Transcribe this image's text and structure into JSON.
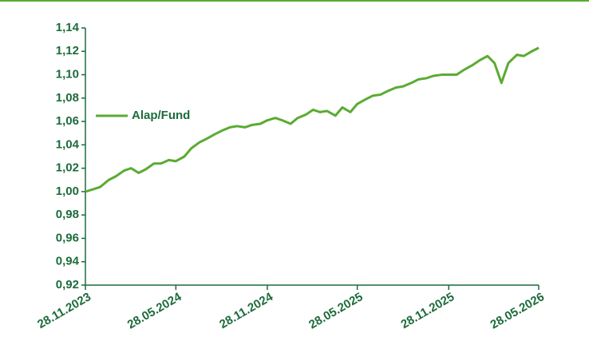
{
  "chart_data": {
    "type": "line",
    "x": [
      "28.11.2023",
      "14.12.2023",
      "28.12.2023",
      "14.01.2024",
      "28.01.2024",
      "14.02.2024",
      "28.02.2024",
      "14.03.2024",
      "28.03.2024",
      "14.04.2024",
      "28.04.2024",
      "14.05.2024",
      "28.05.2024",
      "14.06.2024",
      "28.06.2024",
      "14.07.2024",
      "28.07.2024",
      "14.08.2024",
      "28.08.2024",
      "14.09.2024",
      "28.09.2024",
      "14.10.2024",
      "28.10.2024",
      "14.11.2024",
      "28.11.2024",
      "14.12.2024",
      "28.12.2024",
      "14.01.2025",
      "28.01.2025",
      "14.02.2025",
      "28.02.2025",
      "14.03.2025",
      "28.03.2025",
      "14.04.2025",
      "28.04.2025",
      "14.05.2025",
      "28.05.2025",
      "14.06.2025",
      "28.06.2025",
      "14.07.2025",
      "28.07.2025",
      "14.08.2025",
      "28.08.2025",
      "14.09.2025",
      "28.09.2025",
      "14.10.2025",
      "28.10.2025",
      "14.11.2025",
      "28.11.2025",
      "14.12.2025",
      "28.12.2025",
      "14.01.2026",
      "28.01.2026",
      "14.02.2026",
      "28.02.2026",
      "14.03.2026",
      "28.03.2026",
      "14.04.2026",
      "28.04.2026",
      "14.05.2026",
      "28.05.2026"
    ],
    "series": [
      {
        "name": "Alap/Fund",
        "color": "#5aab32",
        "values": [
          1.0,
          1.002,
          1.004,
          1.01,
          1.013,
          1.018,
          1.02,
          1.016,
          1.019,
          1.024,
          1.024,
          1.027,
          1.026,
          1.03,
          1.037,
          1.042,
          1.045,
          1.049,
          1.052,
          1.055,
          1.056,
          1.055,
          1.057,
          1.058,
          1.061,
          1.063,
          1.061,
          1.058,
          1.063,
          1.066,
          1.07,
          1.068,
          1.069,
          1.065,
          1.072,
          1.068,
          1.075,
          1.079,
          1.082,
          1.083,
          1.086,
          1.089,
          1.09,
          1.093,
          1.096,
          1.097,
          1.099,
          1.1,
          1.1,
          1.1,
          1.104,
          1.108,
          1.112,
          1.116,
          1.11,
          1.093,
          1.11,
          1.117,
          1.116,
          1.12,
          1.123
        ]
      }
    ],
    "xlim": [
      "28.11.2023",
      "28.05.2026"
    ],
    "xticks": [
      "28.11.2023",
      "28.05.2024",
      "28.11.2024",
      "28.05.2025",
      "28.11.2025",
      "28.05.2026"
    ],
    "ylim": [
      0.92,
      1.14
    ],
    "yticks": [
      {
        "value": 0.92,
        "label": "0,92"
      },
      {
        "value": 0.94,
        "label": "0,94"
      },
      {
        "value": 0.96,
        "label": "0,96"
      },
      {
        "value": 0.98,
        "label": "0,98"
      },
      {
        "value": 1.0,
        "label": "1,00"
      },
      {
        "value": 1.02,
        "label": "1,02"
      },
      {
        "value": 1.04,
        "label": "1,04"
      },
      {
        "value": 1.06,
        "label": "1,06"
      },
      {
        "value": 1.08,
        "label": "1,08"
      },
      {
        "value": 1.1,
        "label": "1,10"
      },
      {
        "value": 1.12,
        "label": "1,12"
      },
      {
        "value": 1.14,
        "label": "1,14"
      }
    ],
    "grid": false,
    "legend": "left"
  }
}
